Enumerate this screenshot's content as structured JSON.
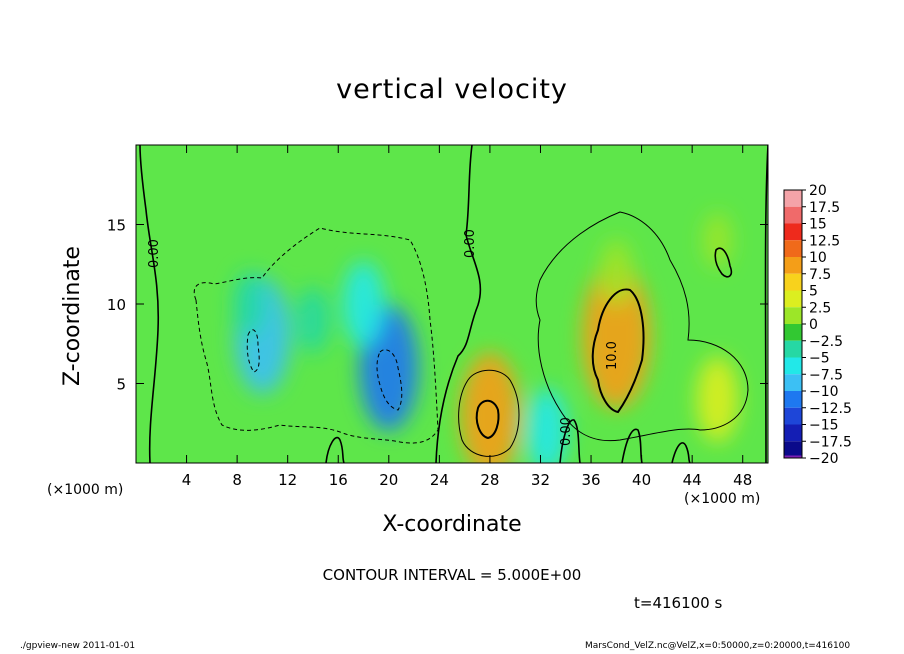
{
  "chart_data": {
    "type": "heatmap",
    "title": "vertical velocity",
    "xlabel": "X-coordinate",
    "ylabel": "Z-coordinate",
    "x_unit_label": "(×1000 m)",
    "xlim": [
      0,
      50
    ],
    "ylim": [
      0,
      20
    ],
    "xticks": [
      4,
      8,
      12,
      16,
      20,
      24,
      28,
      32,
      36,
      40,
      44,
      48
    ],
    "yticks": [
      5,
      10,
      15
    ],
    "contour_interval_text": "CONTOUR INTERVAL = 5.000E+00",
    "time_text": "t=416100 s",
    "contour_labels": [
      "0.00",
      "0.00",
      "0.00",
      "10.0"
    ],
    "colorbar": {
      "labels": [
        "20",
        "17.5",
        "15",
        "12.5",
        "10",
        "7.5",
        "5",
        "2.5",
        "0",
        "−2.5",
        "−5",
        "−7.5",
        "−10",
        "−12.5",
        "−15",
        "−17.5",
        "−20"
      ],
      "colors": [
        "#f4a3a8",
        "#f06a6a",
        "#ee2a1c",
        "#f06a1a",
        "#f49e18",
        "#f8d21c",
        "#dcee20",
        "#9ce628",
        "#32c832",
        "#26d8a4",
        "#22e8e8",
        "#3cc0f4",
        "#1e78f0",
        "#1e46d8",
        "#141eb4",
        "#0a0a8a",
        "#7a1eb4"
      ]
    },
    "features": [
      {
        "x": 10,
        "z": 8,
        "w": -8
      },
      {
        "x": 20,
        "z": 6,
        "w": -9
      },
      {
        "x": 18,
        "z": 10,
        "w": -5
      },
      {
        "x": 14,
        "z": 9,
        "w": -3
      },
      {
        "x": 9,
        "z": 10,
        "w": -3
      },
      {
        "x": 28,
        "z": 3,
        "w": 9
      },
      {
        "x": 32.5,
        "z": 2,
        "w": -5
      },
      {
        "x": 38,
        "z": 8,
        "w": 11
      },
      {
        "x": 38,
        "z": 12,
        "w": 3
      },
      {
        "x": 46,
        "z": 4,
        "w": 5
      },
      {
        "x": 46,
        "z": 14,
        "w": 2
      }
    ]
  },
  "footer": {
    "left": "./gpview-new   2011-01-01",
    "right": "MarsCond_VelZ.nc@VelZ,x=0:50000,z=0:20000,t=416100"
  }
}
